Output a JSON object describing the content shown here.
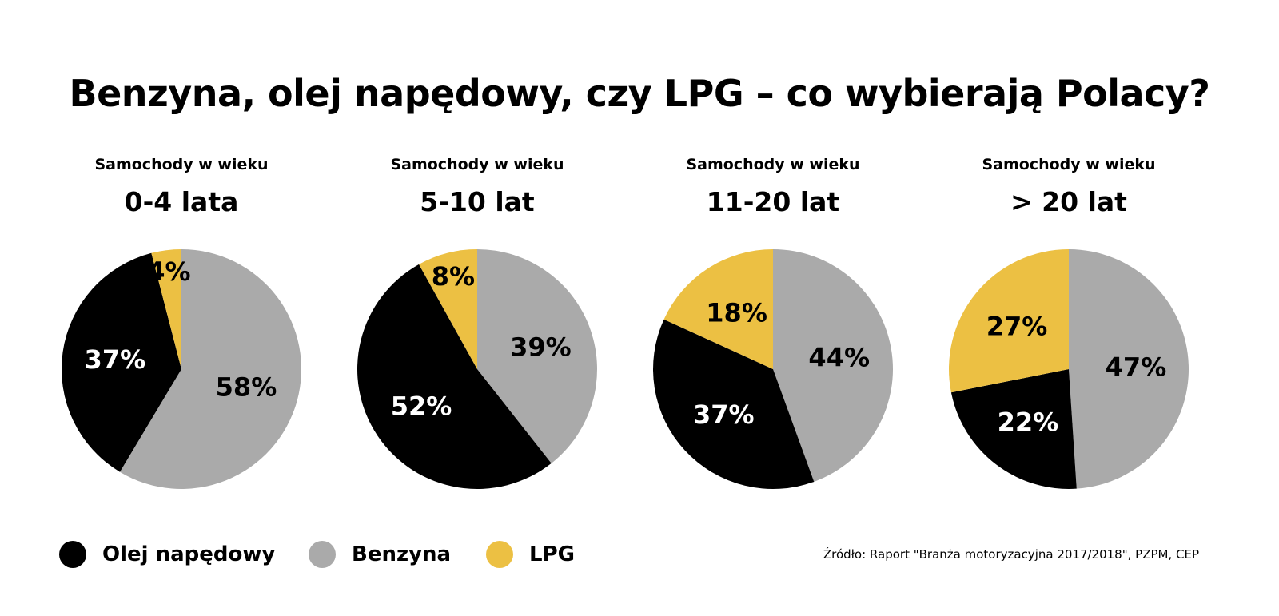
{
  "title": "Benzyna, olej napędowy, czy LPG – co wybierają Polacy?",
  "colors": {
    "Olej napędowy": "#000000",
    "Benzyna": "#aaaaaa",
    "LPG": "#ecc043"
  },
  "chart_data": [
    {
      "type": "pie",
      "subtitle": "Samochody w wieku",
      "title": "0-4 lata",
      "slices": [
        {
          "label": "Benzyna",
          "value": 58,
          "display": "58%"
        },
        {
          "label": "Olej napędowy",
          "value": 37,
          "display": "37%"
        },
        {
          "label": "LPG",
          "value": 4,
          "display": "4%"
        }
      ]
    },
    {
      "type": "pie",
      "subtitle": "Samochody w wieku",
      "title": "5-10 lat",
      "slices": [
        {
          "label": "Benzyna",
          "value": 39,
          "display": "39%"
        },
        {
          "label": "Olej napędowy",
          "value": 52,
          "display": "52%"
        },
        {
          "label": "LPG",
          "value": 8,
          "display": "8%"
        }
      ]
    },
    {
      "type": "pie",
      "subtitle": "Samochody w wieku",
      "title": "11-20 lat",
      "slices": [
        {
          "label": "Benzyna",
          "value": 44,
          "display": "44%"
        },
        {
          "label": "Olej napędowy",
          "value": 37,
          "display": "37%"
        },
        {
          "label": "LPG",
          "value": 18,
          "display": "18%"
        }
      ]
    },
    {
      "type": "pie",
      "subtitle": "Samochody w wieku",
      "title": "> 20 lat",
      "slices": [
        {
          "label": "Benzyna",
          "value": 47,
          "display": "47%"
        },
        {
          "label": "Olej napędowy",
          "value": 22,
          "display": "22%"
        },
        {
          "label": "LPG",
          "value": 27,
          "display": "27%"
        }
      ]
    }
  ],
  "legend": [
    {
      "label": "Olej napędowy"
    },
    {
      "label": "Benzyna"
    },
    {
      "label": "LPG"
    }
  ],
  "source": "Źródło: Raport \"Branża motoryzacyjna 2017/2018\", PZPM, CEP"
}
